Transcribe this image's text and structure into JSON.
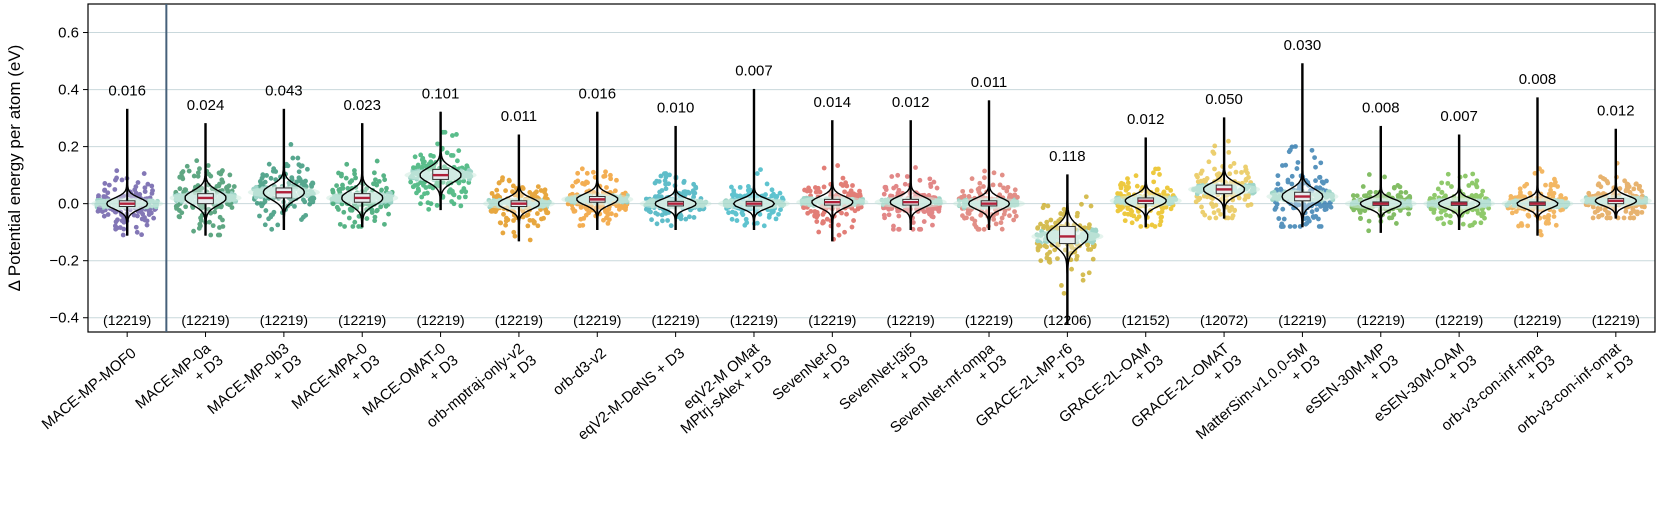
{
  "chart_data": {
    "type": "violin",
    "ylabel": "Δ Potential energy per atom (eV)",
    "ylim": [
      -0.45,
      0.7
    ],
    "yticks": [
      -0.4,
      -0.2,
      0.0,
      0.2,
      0.4,
      0.6
    ],
    "ytick_labels": [
      "−0.4",
      "−0.2",
      "0.0",
      "0.2",
      "0.4",
      "0.6"
    ],
    "grid": "horizontal",
    "separator_after_index": 0,
    "models": [
      {
        "name": "MACE-MP-MOF0",
        "line2": "",
        "count": "(12219)",
        "median_label": "0.016",
        "median": 0.0,
        "q1": -0.01,
        "q3": 0.01,
        "lo": -0.11,
        "hi": 0.33,
        "spread": 0.035,
        "color": "#5a4a9e"
      },
      {
        "name": "MACE-MP-0a",
        "line2": "+ D3",
        "count": "(12219)",
        "median_label": "0.024",
        "median": 0.02,
        "q1": 0.0,
        "q3": 0.035,
        "lo": -0.11,
        "hi": 0.28,
        "spread": 0.045,
        "color": "#2a8a5a"
      },
      {
        "name": "MACE-MP-0b3",
        "line2": "+ D3",
        "count": "(12219)",
        "median_label": "0.043",
        "median": 0.04,
        "q1": 0.02,
        "q3": 0.055,
        "lo": -0.09,
        "hi": 0.33,
        "spread": 0.045,
        "color": "#1f8a6a"
      },
      {
        "name": "MACE-MPA-0",
        "line2": "+ D3",
        "count": "(12219)",
        "median_label": "0.023",
        "median": 0.02,
        "q1": 0.005,
        "q3": 0.035,
        "lo": -0.08,
        "hi": 0.28,
        "spread": 0.045,
        "color": "#1f9a5e"
      },
      {
        "name": "MACE-OMAT-0",
        "line2": "+ D3",
        "count": "(12219)",
        "median_label": "0.101",
        "median": 0.1,
        "q1": 0.085,
        "q3": 0.12,
        "lo": -0.02,
        "hi": 0.32,
        "spread": 0.045,
        "color": "#23a865"
      },
      {
        "name": "orb-mptraj-only-v2",
        "line2": "+ D3",
        "count": "(12219)",
        "median_label": "0.011",
        "median": 0.0,
        "q1": -0.01,
        "q3": 0.01,
        "lo": -0.13,
        "hi": 0.24,
        "spread": 0.035,
        "color": "#e08a00"
      },
      {
        "name": "orb-d3-v2",
        "line2": "",
        "count": "(12219)",
        "median_label": "0.016",
        "median": 0.015,
        "q1": 0.005,
        "q3": 0.025,
        "lo": -0.09,
        "hi": 0.32,
        "spread": 0.035,
        "color": "#f0931a"
      },
      {
        "name": "eqV2-M-DeNS + D3",
        "line2": "",
        "count": "(12219)",
        "median_label": "0.010",
        "median": 0.0,
        "q1": -0.008,
        "q3": 0.008,
        "lo": -0.09,
        "hi": 0.27,
        "spread": 0.03,
        "color": "#2aa8b8"
      },
      {
        "name": "eqV2-M OMat",
        "line2": "MPtrj-sAlex + D3",
        "count": "(12219)",
        "median_label": "0.007",
        "median": 0.0,
        "q1": -0.008,
        "q3": 0.008,
        "lo": -0.09,
        "hi": 0.4,
        "spread": 0.03,
        "color": "#2ab0c0"
      },
      {
        "name": "SevenNet-0",
        "line2": "+ D3",
        "count": "(12219)",
        "median_label": "0.014",
        "median": 0.005,
        "q1": -0.005,
        "q3": 0.015,
        "lo": -0.13,
        "hi": 0.29,
        "spread": 0.035,
        "color": "#d9534a"
      },
      {
        "name": "SevenNet-l3i5",
        "line2": "+ D3",
        "count": "(12219)",
        "median_label": "0.012",
        "median": 0.005,
        "q1": -0.005,
        "q3": 0.015,
        "lo": -0.09,
        "hi": 0.29,
        "spread": 0.035,
        "color": "#d96060"
      },
      {
        "name": "SevenNet-mf-ompa",
        "line2": "+ D3",
        "count": "(12219)",
        "median_label": "0.011",
        "median": 0.0,
        "q1": -0.008,
        "q3": 0.01,
        "lo": -0.09,
        "hi": 0.36,
        "spread": 0.035,
        "color": "#d96a60"
      },
      {
        "name": "GRACE-2L-MP-r6",
        "line2": "+ D3",
        "count": "(12206)",
        "median_label": "0.118",
        "median": -0.115,
        "q1": -0.14,
        "q3": -0.08,
        "lo": -0.42,
        "hi": 0.1,
        "spread": 0.06,
        "color": "#c8a81a"
      },
      {
        "name": "GRACE-2L-OAM",
        "line2": "+ D3",
        "count": "(12152)",
        "median_label": "0.012",
        "median": 0.01,
        "q1": 0.0,
        "q3": 0.02,
        "lo": -0.08,
        "hi": 0.23,
        "spread": 0.035,
        "color": "#e8b800"
      },
      {
        "name": "GRACE-2L-OMAT",
        "line2": "+ D3",
        "count": "(12072)",
        "median_label": "0.050",
        "median": 0.05,
        "q1": 0.035,
        "q3": 0.065,
        "lo": -0.05,
        "hi": 0.3,
        "spread": 0.04,
        "color": "#e6c040"
      },
      {
        "name": "MatterSim-v1.0.0-5M",
        "line2": "+ D3",
        "count": "(12219)",
        "median_label": "0.030",
        "median": 0.025,
        "q1": 0.01,
        "q3": 0.04,
        "lo": -0.08,
        "hi": 0.49,
        "spread": 0.045,
        "color": "#1f70a8"
      },
      {
        "name": "eSEN-30M-MP",
        "line2": "+ D3",
        "count": "(12219)",
        "median_label": "0.008",
        "median": 0.0,
        "q1": -0.006,
        "q3": 0.006,
        "lo": -0.1,
        "hi": 0.27,
        "spread": 0.03,
        "color": "#5aa832"
      },
      {
        "name": "eSEN-30M-OAM",
        "line2": "+ D3",
        "count": "(12219)",
        "median_label": "0.007",
        "median": 0.0,
        "q1": -0.006,
        "q3": 0.006,
        "lo": -0.09,
        "hi": 0.24,
        "spread": 0.03,
        "color": "#6ab83a"
      },
      {
        "name": "orb-v3-con-inf-mpa",
        "line2": "+ D3",
        "count": "(12219)",
        "median_label": "0.008",
        "median": 0.0,
        "q1": -0.006,
        "q3": 0.006,
        "lo": -0.11,
        "hi": 0.37,
        "spread": 0.03,
        "color": "#f0a030"
      },
      {
        "name": "orb-v3-con-inf-omat",
        "line2": "+ D3",
        "count": "(12219)",
        "median_label": "0.012",
        "median": 0.01,
        "q1": 0.0,
        "q3": 0.018,
        "lo": -0.05,
        "hi": 0.26,
        "spread": 0.03,
        "color": "#e09a40"
      }
    ]
  }
}
